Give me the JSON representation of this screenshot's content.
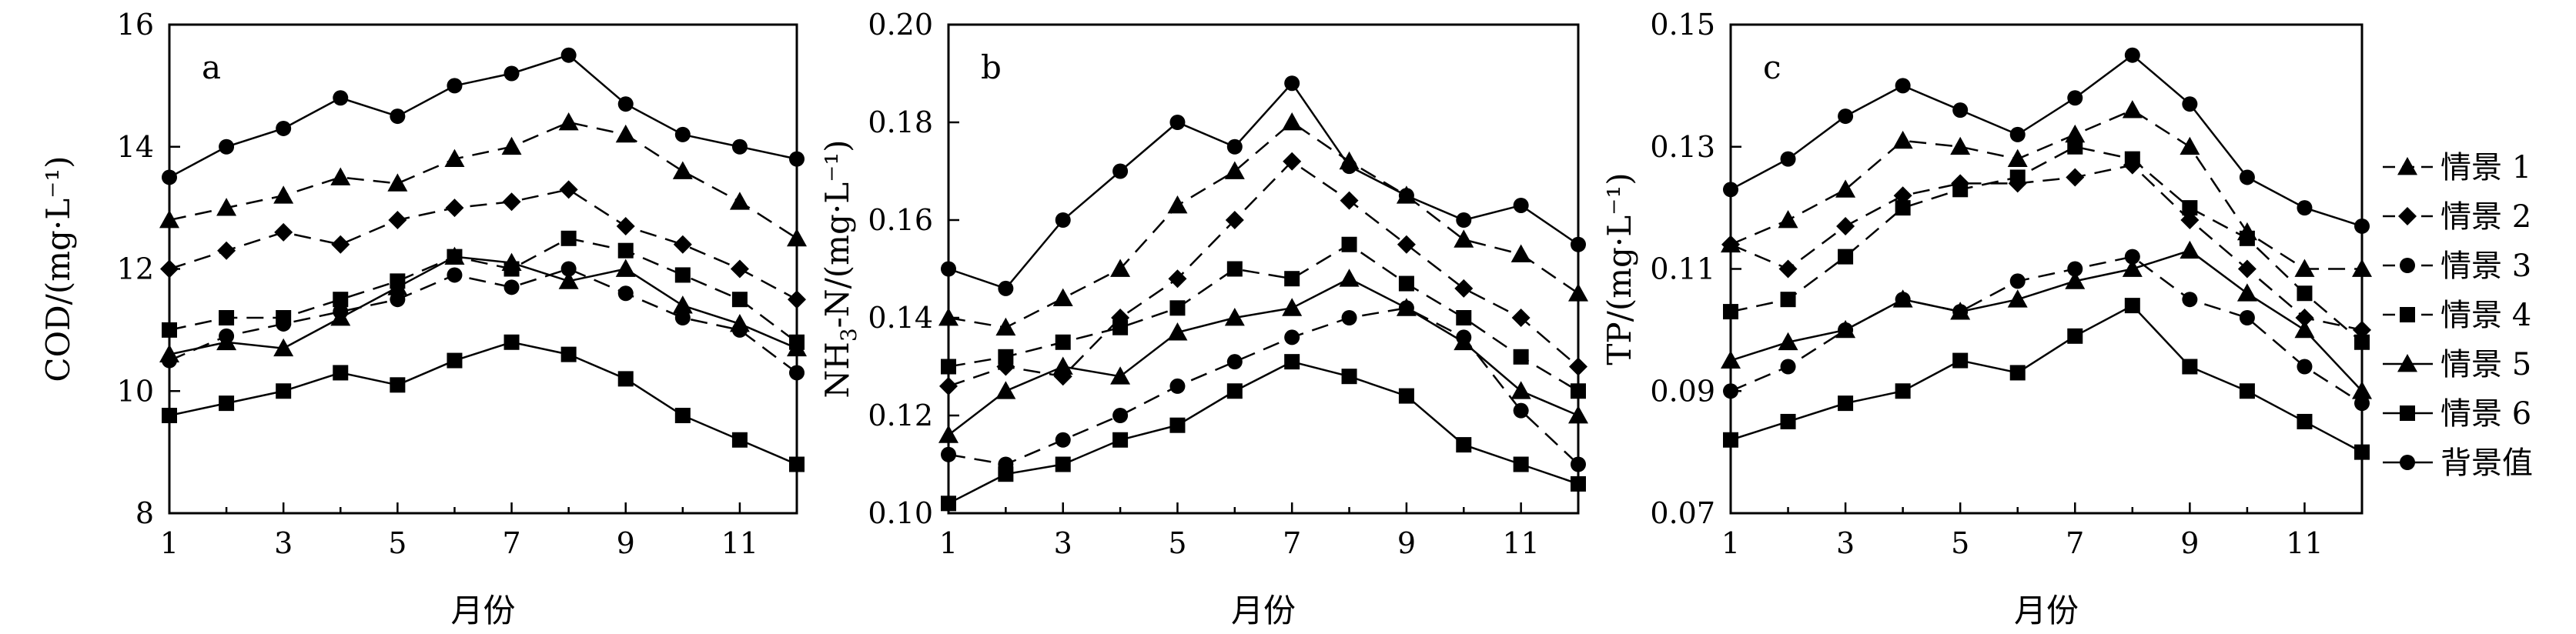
{
  "chart_data": [
    {
      "type": "line",
      "panel_label": "a",
      "xlabel": "月份",
      "ylabel": "COD/(mg·L⁻¹)",
      "x": [
        1,
        2,
        3,
        4,
        5,
        6,
        7,
        8,
        9,
        10,
        11,
        12
      ],
      "xticks": [
        1,
        3,
        5,
        7,
        9,
        11
      ],
      "ylim": [
        8,
        16
      ],
      "yticks": [
        8,
        10,
        12,
        14,
        16
      ],
      "ytick_labels": [
        "8",
        "10",
        "12",
        "14",
        "16"
      ],
      "series": [
        {
          "name": "情景 1",
          "marker": "triangle",
          "dash": "dashed",
          "values": [
            12.8,
            13.0,
            13.2,
            13.5,
            13.4,
            13.8,
            14.0,
            14.4,
            14.2,
            13.6,
            13.1,
            12.5
          ]
        },
        {
          "name": "情景 2",
          "marker": "diamond",
          "dash": "dashed",
          "values": [
            12.0,
            12.3,
            12.6,
            12.4,
            12.8,
            13.0,
            13.1,
            13.3,
            12.7,
            12.4,
            12.0,
            11.5
          ]
        },
        {
          "name": "情景 3",
          "marker": "circle",
          "dash": "dashed",
          "values": [
            10.5,
            10.9,
            11.1,
            11.3,
            11.5,
            11.9,
            11.7,
            12.0,
            11.6,
            11.2,
            11.0,
            10.3
          ]
        },
        {
          "name": "情景 4",
          "marker": "square",
          "dash": "dashed",
          "values": [
            11.0,
            11.2,
            11.2,
            11.5,
            11.8,
            12.2,
            12.0,
            12.5,
            12.3,
            11.9,
            11.5,
            10.8
          ]
        },
        {
          "name": "情景 5",
          "marker": "triangle",
          "dash": "solid",
          "values": [
            10.6,
            10.8,
            10.7,
            11.2,
            11.7,
            12.2,
            12.1,
            11.8,
            12.0,
            11.4,
            11.1,
            10.7
          ]
        },
        {
          "name": "情景 6",
          "marker": "square",
          "dash": "solid",
          "values": [
            9.6,
            9.8,
            10.0,
            10.3,
            10.1,
            10.5,
            10.8,
            10.6,
            10.2,
            9.6,
            9.2,
            8.8
          ]
        },
        {
          "name": "背景值",
          "marker": "circle",
          "dash": "solid",
          "values": [
            13.5,
            14.0,
            14.3,
            14.8,
            14.5,
            15.0,
            15.2,
            15.5,
            14.7,
            14.2,
            14.0,
            13.8
          ]
        }
      ]
    },
    {
      "type": "line",
      "panel_label": "b",
      "xlabel": "月份",
      "ylabel_main": "NH",
      "ylabel_sub": "3",
      "ylabel_rest": "-N/(mg·L⁻¹)",
      "x": [
        1,
        2,
        3,
        4,
        5,
        6,
        7,
        8,
        9,
        10,
        11,
        12
      ],
      "xticks": [
        1,
        3,
        5,
        7,
        9,
        11
      ],
      "ylim": [
        0.1,
        0.2
      ],
      "yticks": [
        0.1,
        0.12,
        0.14,
        0.16,
        0.18,
        0.2
      ],
      "ytick_labels": [
        "0.10",
        "0.12",
        "0.14",
        "0.16",
        "0.18",
        "0.20"
      ],
      "series": [
        {
          "name": "情景 1",
          "marker": "triangle",
          "dash": "dashed",
          "values": [
            0.14,
            0.138,
            0.144,
            0.15,
            0.163,
            0.17,
            0.18,
            0.172,
            0.165,
            0.156,
            0.153,
            0.145
          ]
        },
        {
          "name": "情景 2",
          "marker": "diamond",
          "dash": "dashed",
          "values": [
            0.126,
            0.13,
            0.128,
            0.14,
            0.148,
            0.16,
            0.172,
            0.164,
            0.155,
            0.146,
            0.14,
            0.13
          ]
        },
        {
          "name": "情景 3",
          "marker": "circle",
          "dash": "dashed",
          "values": [
            0.112,
            0.11,
            0.115,
            0.12,
            0.126,
            0.131,
            0.136,
            0.14,
            0.142,
            0.136,
            0.121,
            0.11
          ]
        },
        {
          "name": "情景 4",
          "marker": "square",
          "dash": "dashed",
          "values": [
            0.13,
            0.132,
            0.135,
            0.138,
            0.142,
            0.15,
            0.148,
            0.155,
            0.147,
            0.14,
            0.132,
            0.125
          ]
        },
        {
          "name": "情景 5",
          "marker": "triangle",
          "dash": "solid",
          "values": [
            0.116,
            0.125,
            0.13,
            0.128,
            0.137,
            0.14,
            0.142,
            0.148,
            0.142,
            0.135,
            0.125,
            0.12
          ]
        },
        {
          "name": "情景 6",
          "marker": "square",
          "dash": "solid",
          "values": [
            0.102,
            0.108,
            0.11,
            0.115,
            0.118,
            0.125,
            0.131,
            0.128,
            0.124,
            0.114,
            0.11,
            0.106
          ]
        },
        {
          "name": "背景值",
          "marker": "circle",
          "dash": "solid",
          "values": [
            0.15,
            0.146,
            0.16,
            0.17,
            0.18,
            0.175,
            0.188,
            0.171,
            0.165,
            0.16,
            0.163,
            0.155
          ]
        }
      ]
    },
    {
      "type": "line",
      "panel_label": "c",
      "xlabel": "月份",
      "ylabel": "TP/(mg·L⁻¹)",
      "x": [
        1,
        2,
        3,
        4,
        5,
        6,
        7,
        8,
        9,
        10,
        11,
        12
      ],
      "xticks": [
        1,
        3,
        5,
        7,
        9,
        11
      ],
      "ylim": [
        0.07,
        0.15
      ],
      "yticks": [
        0.07,
        0.09,
        0.11,
        0.13,
        0.15
      ],
      "ytick_labels": [
        "0.07",
        "0.09",
        "0.11",
        "0.13",
        "0.15"
      ],
      "series": [
        {
          "name": "情景 1",
          "marker": "triangle",
          "dash": "dashed",
          "values": [
            0.114,
            0.118,
            0.123,
            0.131,
            0.13,
            0.128,
            0.132,
            0.136,
            0.13,
            0.116,
            0.11,
            0.11
          ]
        },
        {
          "name": "情景 2",
          "marker": "diamond",
          "dash": "dashed",
          "values": [
            0.114,
            0.11,
            0.117,
            0.122,
            0.124,
            0.124,
            0.125,
            0.127,
            0.118,
            0.11,
            0.102,
            0.1
          ]
        },
        {
          "name": "情景 3",
          "marker": "circle",
          "dash": "dashed",
          "values": [
            0.09,
            0.094,
            0.1,
            0.105,
            0.103,
            0.108,
            0.11,
            0.112,
            0.105,
            0.102,
            0.094,
            0.088
          ]
        },
        {
          "name": "情景 4",
          "marker": "square",
          "dash": "dashed",
          "values": [
            0.103,
            0.105,
            0.112,
            0.12,
            0.123,
            0.125,
            0.13,
            0.128,
            0.12,
            0.115,
            0.106,
            0.098
          ]
        },
        {
          "name": "情景 5",
          "marker": "triangle",
          "dash": "solid",
          "values": [
            0.095,
            0.098,
            0.1,
            0.105,
            0.103,
            0.105,
            0.108,
            0.11,
            0.113,
            0.106,
            0.1,
            0.09
          ]
        },
        {
          "name": "情景 6",
          "marker": "square",
          "dash": "solid",
          "values": [
            0.082,
            0.085,
            0.088,
            0.09,
            0.095,
            0.093,
            0.099,
            0.104,
            0.094,
            0.09,
            0.085,
            0.08
          ]
        },
        {
          "name": "背景值",
          "marker": "circle",
          "dash": "solid",
          "values": [
            0.123,
            0.128,
            0.135,
            0.14,
            0.136,
            0.132,
            0.138,
            0.145,
            0.137,
            0.125,
            0.12,
            0.117
          ]
        }
      ]
    }
  ],
  "legend": {
    "placement": "right",
    "entries": [
      {
        "label": "情景 1",
        "marker": "triangle",
        "dash": "dashed"
      },
      {
        "label": "情景 2",
        "marker": "diamond",
        "dash": "dashed"
      },
      {
        "label": "情景 3",
        "marker": "circle",
        "dash": "dashed"
      },
      {
        "label": "情景 4",
        "marker": "square",
        "dash": "dashed"
      },
      {
        "label": "情景 5",
        "marker": "triangle",
        "dash": "solid"
      },
      {
        "label": "情景 6",
        "marker": "square",
        "dash": "solid"
      },
      {
        "label": "背景值",
        "marker": "circle",
        "dash": "solid"
      }
    ]
  },
  "colors": {
    "line": "#000000",
    "background": "#ffffff"
  }
}
